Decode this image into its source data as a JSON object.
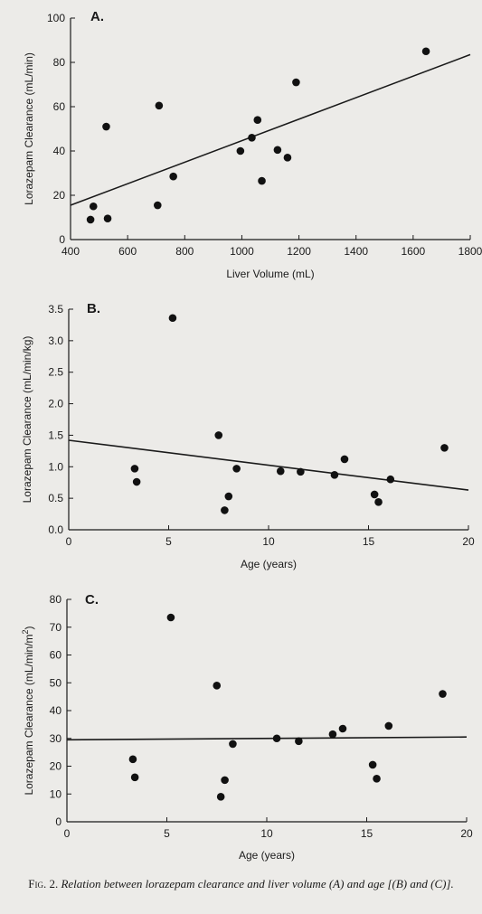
{
  "chart_data": [
    {
      "type": "scatter",
      "panel_label": "A.",
      "xlabel": "Liver Volume (mL)",
      "ylabel": "Lorazepam Clearance (mL/min)",
      "xlim": [
        400,
        1800
      ],
      "ylim": [
        0,
        100
      ],
      "x_ticks": [
        400,
        600,
        800,
        1000,
        1200,
        1400,
        1600,
        1800
      ],
      "x_tick_labels": [
        "400",
        "600",
        "800",
        "1000",
        "1200",
        "1400",
        "1600",
        "1800"
      ],
      "y_ticks": [
        0,
        20,
        40,
        60,
        80,
        100
      ],
      "y_tick_labels": [
        "0",
        "20",
        "40",
        "60",
        "80",
        "100"
      ],
      "points": [
        {
          "x": 470,
          "y": 9
        },
        {
          "x": 480,
          "y": 15
        },
        {
          "x": 525,
          "y": 51
        },
        {
          "x": 530,
          "y": 9.5
        },
        {
          "x": 705,
          "y": 15.5
        },
        {
          "x": 710,
          "y": 60.5
        },
        {
          "x": 760,
          "y": 28.5
        },
        {
          "x": 995,
          "y": 40
        },
        {
          "x": 1035,
          "y": 46
        },
        {
          "x": 1055,
          "y": 54
        },
        {
          "x": 1070,
          "y": 26.5
        },
        {
          "x": 1125,
          "y": 40.5
        },
        {
          "x": 1160,
          "y": 37
        },
        {
          "x": 1190,
          "y": 71
        },
        {
          "x": 1645,
          "y": 85
        }
      ],
      "fit_line": {
        "x": [
          400,
          1800
        ],
        "y": [
          15.5,
          83.5
        ]
      },
      "grid": false
    },
    {
      "type": "scatter",
      "panel_label": "B.",
      "xlabel": "Age (years)",
      "ylabel": "Lorazepam Clearance (mL/min/kg)",
      "xlim": [
        0,
        20
      ],
      "ylim": [
        0,
        3.5
      ],
      "x_ticks": [
        0,
        5,
        10,
        15,
        20
      ],
      "x_tick_labels": [
        "0",
        "5",
        "10",
        "15",
        "20"
      ],
      "y_ticks": [
        0,
        0.5,
        1.0,
        1.5,
        2.0,
        2.5,
        3.0,
        3.5
      ],
      "y_tick_labels": [
        "0.0",
        "0.5",
        "1.0",
        "1.5",
        "2.0",
        "2.5",
        "3.0",
        "3.5"
      ],
      "points": [
        {
          "x": 3.3,
          "y": 0.97
        },
        {
          "x": 3.4,
          "y": 0.76
        },
        {
          "x": 5.2,
          "y": 3.36
        },
        {
          "x": 7.5,
          "y": 1.5
        },
        {
          "x": 7.8,
          "y": 0.31
        },
        {
          "x": 8.0,
          "y": 0.53
        },
        {
          "x": 8.4,
          "y": 0.97
        },
        {
          "x": 10.6,
          "y": 0.93
        },
        {
          "x": 11.6,
          "y": 0.92
        },
        {
          "x": 13.3,
          "y": 0.87
        },
        {
          "x": 13.8,
          "y": 1.12
        },
        {
          "x": 15.3,
          "y": 0.56
        },
        {
          "x": 15.5,
          "y": 0.44
        },
        {
          "x": 16.1,
          "y": 0.8
        },
        {
          "x": 18.8,
          "y": 1.3
        }
      ],
      "fit_line": {
        "x": [
          0,
          20
        ],
        "y": [
          1.42,
          0.63
        ]
      },
      "grid": false
    },
    {
      "type": "scatter",
      "panel_label": "C.",
      "xlabel": "Age (years)",
      "ylabel_base": "Lorazepam Clearance (mL/min/m",
      "ylabel_superscript": "2",
      "ylabel_end": ")",
      "xlim": [
        0,
        20
      ],
      "ylim": [
        0,
        80
      ],
      "x_ticks": [
        0,
        5,
        10,
        15,
        20
      ],
      "x_tick_labels": [
        "0",
        "5",
        "10",
        "15",
        "20"
      ],
      "y_ticks": [
        0,
        10,
        20,
        30,
        40,
        50,
        60,
        70,
        80
      ],
      "y_tick_labels": [
        "0",
        "10",
        "20",
        "30",
        "40",
        "50",
        "60",
        "70",
        "80"
      ],
      "points": [
        {
          "x": 3.3,
          "y": 22.5
        },
        {
          "x": 3.4,
          "y": 16
        },
        {
          "x": 5.2,
          "y": 73.5
        },
        {
          "x": 7.5,
          "y": 49
        },
        {
          "x": 7.7,
          "y": 9
        },
        {
          "x": 7.9,
          "y": 15
        },
        {
          "x": 8.3,
          "y": 28
        },
        {
          "x": 10.5,
          "y": 30
        },
        {
          "x": 11.6,
          "y": 29
        },
        {
          "x": 13.3,
          "y": 31.5
        },
        {
          "x": 13.8,
          "y": 33.5
        },
        {
          "x": 15.3,
          "y": 20.5
        },
        {
          "x": 15.5,
          "y": 15.5
        },
        {
          "x": 16.1,
          "y": 34.5
        },
        {
          "x": 18.8,
          "y": 46
        }
      ],
      "fit_line": {
        "x": [
          0,
          20
        ],
        "y": [
          29.5,
          30.5
        ]
      },
      "grid": false
    }
  ],
  "caption": {
    "label": "Fig. 2.",
    "text": "Relation between lorazepam clearance and liver volume (A) and age [(B) and (C)]."
  }
}
